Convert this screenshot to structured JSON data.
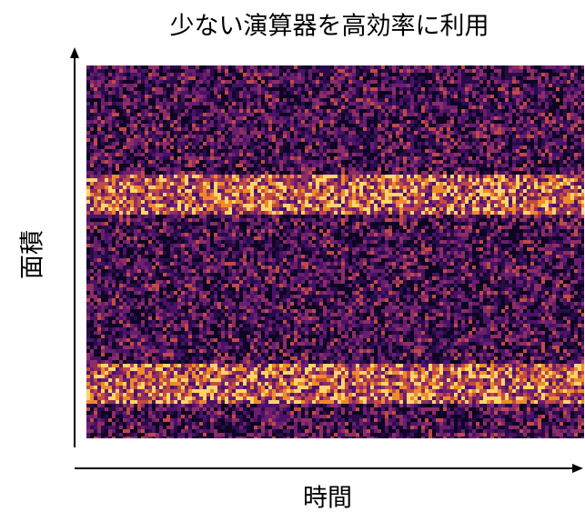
{
  "title": "少ない演算器を高効率に利用",
  "x_axis_label": "時間",
  "y_axis_label": "面積"
}
